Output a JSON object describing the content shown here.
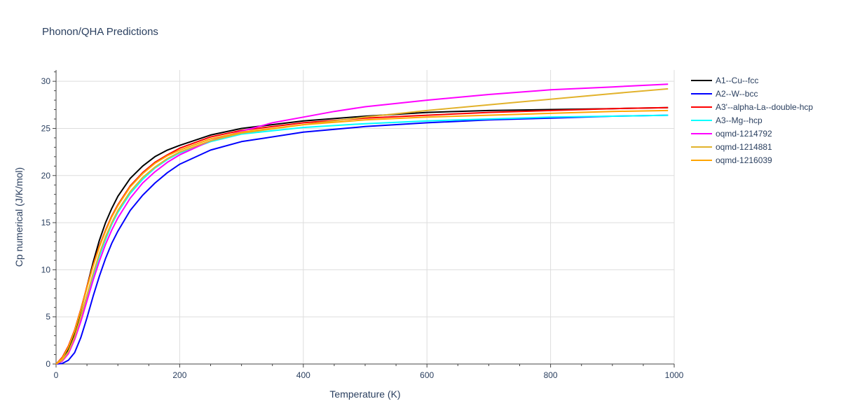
{
  "chart_data": {
    "type": "line",
    "title": "Phonon/QHA Predictions",
    "xlabel": "Temperature (K)",
    "ylabel": "Cp numerical (J/K/mol)",
    "xlim": [
      0,
      1000
    ],
    "ylim": [
      0,
      31.2
    ],
    "xticks": [
      0,
      200,
      400,
      600,
      800,
      1000
    ],
    "yticks": [
      0,
      5,
      10,
      15,
      20,
      25,
      30
    ],
    "grid": true,
    "legend_position": "top-right",
    "series": [
      {
        "name": "A1--Cu--fcc",
        "color": "#000000",
        "x": [
          0,
          10,
          20,
          30,
          40,
          50,
          60,
          70,
          80,
          90,
          100,
          120,
          140,
          160,
          180,
          200,
          250,
          300,
          400,
          500,
          600,
          700,
          800,
          900,
          990
        ],
        "y": [
          0,
          0.5,
          1.5,
          3.2,
          5.6,
          8.2,
          10.8,
          13.1,
          15.0,
          16.5,
          17.8,
          19.7,
          21.0,
          22.0,
          22.7,
          23.2,
          24.3,
          25.0,
          25.8,
          26.3,
          26.7,
          26.9,
          27.0,
          27.1,
          27.2
        ]
      },
      {
        "name": "A2--W--bcc",
        "color": "#0000ff",
        "x": [
          0,
          10,
          20,
          30,
          40,
          50,
          60,
          70,
          80,
          90,
          100,
          120,
          140,
          160,
          180,
          200,
          250,
          300,
          400,
          500,
          600,
          700,
          800,
          900,
          990
        ],
        "y": [
          0,
          0.05,
          0.4,
          1.2,
          2.8,
          4.9,
          7.2,
          9.3,
          11.2,
          12.8,
          14.1,
          16.3,
          17.9,
          19.2,
          20.3,
          21.2,
          22.7,
          23.6,
          24.6,
          25.2,
          25.6,
          25.9,
          26.1,
          26.3,
          26.4
        ]
      },
      {
        "name": "A3'--alpha-La--double-hcp",
        "color": "#ff0000",
        "x": [
          0,
          10,
          20,
          30,
          40,
          50,
          60,
          70,
          80,
          90,
          100,
          120,
          140,
          160,
          180,
          200,
          250,
          300,
          400,
          500,
          600,
          700,
          800,
          900,
          990
        ],
        "y": [
          0,
          0.7,
          1.9,
          3.6,
          5.8,
          8.2,
          10.5,
          12.5,
          14.2,
          15.7,
          16.9,
          18.9,
          20.3,
          21.4,
          22.2,
          22.9,
          24.1,
          24.8,
          25.6,
          26.1,
          26.4,
          26.7,
          26.9,
          27.1,
          27.2
        ]
      },
      {
        "name": "A3--Mg--hcp",
        "color": "#00ffff",
        "x": [
          0,
          10,
          20,
          30,
          40,
          50,
          60,
          70,
          80,
          90,
          100,
          120,
          140,
          160,
          180,
          200,
          250,
          300,
          400,
          500,
          600,
          700,
          800,
          900,
          990
        ],
        "y": [
          0,
          0.4,
          1.3,
          2.8,
          4.8,
          7.1,
          9.3,
          11.4,
          13.2,
          14.8,
          16.1,
          18.1,
          19.6,
          20.8,
          21.7,
          22.4,
          23.6,
          24.4,
          25.1,
          25.5,
          25.8,
          26.0,
          26.2,
          26.3,
          26.4
        ]
      },
      {
        "name": "oqmd-1214792",
        "color": "#ff00ff",
        "x": [
          0,
          10,
          20,
          30,
          40,
          50,
          60,
          70,
          80,
          90,
          100,
          120,
          140,
          160,
          180,
          200,
          250,
          300,
          350,
          400,
          450,
          500,
          600,
          700,
          800,
          900,
          990
        ],
        "y": [
          0,
          0.3,
          1.1,
          2.6,
          4.5,
          6.7,
          8.9,
          10.9,
          12.7,
          14.2,
          15.5,
          17.6,
          19.2,
          20.4,
          21.4,
          22.2,
          23.7,
          24.7,
          25.6,
          26.2,
          26.8,
          27.3,
          28.0,
          28.6,
          29.1,
          29.4,
          29.7
        ]
      },
      {
        "name": "oqmd-1214881",
        "color": "#e2b22b",
        "x": [
          0,
          10,
          20,
          30,
          40,
          50,
          60,
          70,
          80,
          90,
          100,
          120,
          140,
          160,
          180,
          200,
          250,
          300,
          400,
          500,
          600,
          700,
          800,
          900,
          990
        ],
        "y": [
          0,
          0.4,
          1.3,
          2.9,
          5.0,
          7.3,
          9.6,
          11.7,
          13.5,
          15.0,
          16.3,
          18.3,
          19.8,
          20.9,
          21.8,
          22.5,
          23.7,
          24.5,
          25.4,
          26.2,
          26.9,
          27.5,
          28.1,
          28.7,
          29.2
        ]
      },
      {
        "name": "oqmd-1216039",
        "color": "#ffa500",
        "x": [
          0,
          10,
          20,
          30,
          40,
          50,
          60,
          70,
          80,
          90,
          100,
          120,
          140,
          160,
          180,
          200,
          250,
          300,
          400,
          500,
          600,
          700,
          800,
          900,
          990
        ],
        "y": [
          0,
          0.6,
          1.8,
          3.5,
          5.7,
          8.1,
          10.4,
          12.4,
          14.1,
          15.6,
          16.8,
          18.8,
          20.2,
          21.3,
          22.1,
          22.7,
          23.9,
          24.6,
          25.4,
          25.9,
          26.2,
          26.4,
          26.6,
          26.8,
          26.9
        ]
      }
    ]
  }
}
